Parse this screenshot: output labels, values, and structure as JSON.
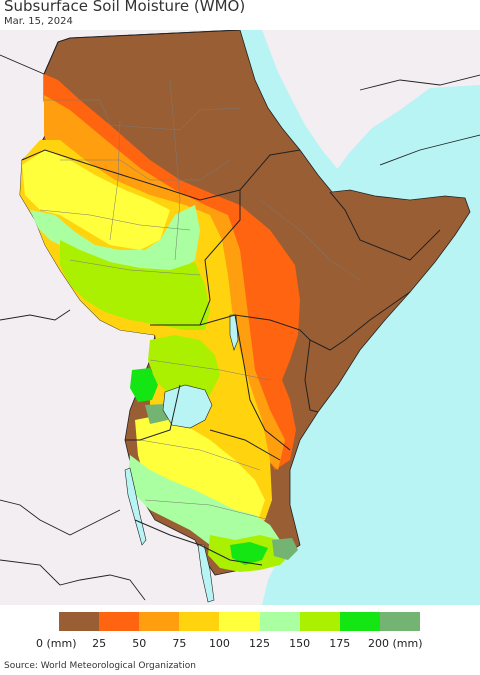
{
  "title": "Subsurface Soil Moisture (WMO)",
  "date": "Mar. 15, 2024",
  "colors": {
    "ocean": "#b8f4f4",
    "land_outside": "#f2eef2",
    "border": "#222222",
    "admin_line": "#7a7a7a"
  },
  "legend": {
    "colors": [
      "#9a5e34",
      "#ff6410",
      "#ff9f0f",
      "#ffd40f",
      "#ffff3c",
      "#aaffa0",
      "#aaf000",
      "#14e614",
      "#73b473"
    ],
    "ticks": [
      "0 (mm)",
      "25",
      "50",
      "75",
      "100",
      "125",
      "150",
      "175",
      "200 (mm)"
    ]
  },
  "source": "Source: World Meteorological Organization"
}
